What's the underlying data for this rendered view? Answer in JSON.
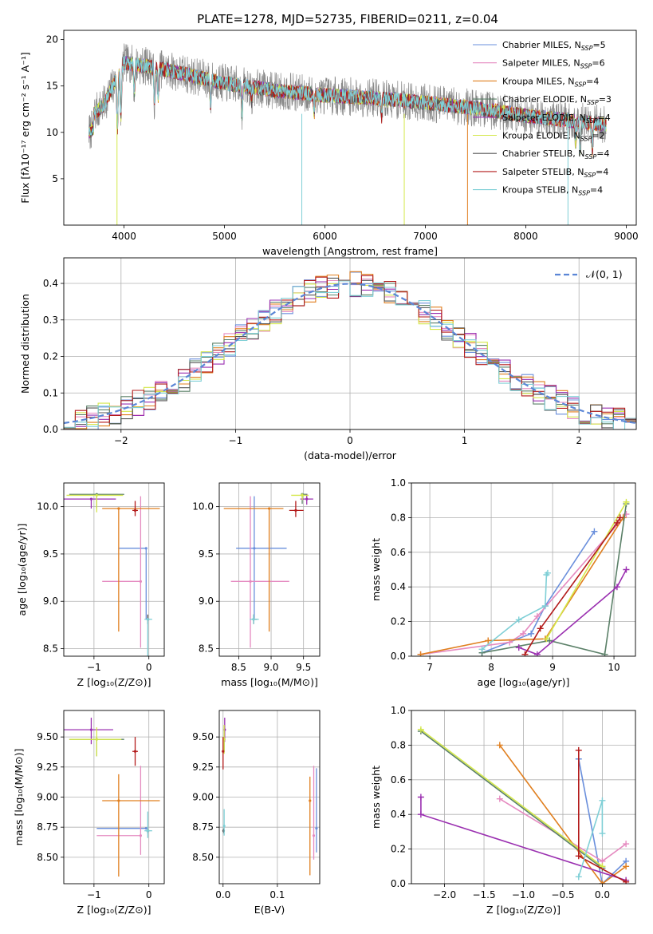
{
  "title": "PLATE=1278, MJD=52735, FIBERID=0211, z=0.04",
  "colors": {
    "Chabrier MILES": "#6a8fdc",
    "Salpeter MILES": "#e58ac0",
    "Kroupa MILES": "#e07f1f",
    "Chabrier ELODIE": "#5b8068",
    "Salpeter ELODIE": "#9a2fb0",
    "Kroupa ELODIE": "#d4e84a",
    "Chabrier STELIB": "#555555",
    "Salpeter STELIB": "#b31b1b",
    "Kroupa STELIB": "#7fcfd6",
    "data": "#888888",
    "normal": "#5b86d6"
  },
  "chart_data": [
    {
      "id": "spectrum",
      "type": "line",
      "title": "PLATE=1278, MJD=52735, FIBERID=0211, z=0.04",
      "xlabel": "wavelength [Angstrom, rest frame]",
      "ylabel": "Flux [fλ10⁻¹⁷ erg cm⁻² s⁻¹ A⁻¹]",
      "xlim": [
        3400,
        9100
      ],
      "ylim": [
        0,
        21
      ],
      "xticks": [
        4000,
        5000,
        6000,
        7000,
        8000,
        9000
      ],
      "yticks": [
        5,
        10,
        15,
        20
      ],
      "continuum": {
        "x": [
          3650,
          3800,
          4000,
          4300,
          4600,
          5000,
          5500,
          6000,
          6500,
          7000,
          7500,
          8000,
          8500,
          8800
        ],
        "y": [
          11.5,
          13.0,
          17.5,
          17.0,
          16.3,
          15.3,
          14.5,
          14.0,
          13.7,
          13.2,
          12.6,
          11.8,
          11.2,
          10.8
        ]
      },
      "legend": [
        {
          "name": "Chabrier MILES",
          "label": "Chabrier MILES, N",
          "sub": "SSP",
          "n": "=5"
        },
        {
          "name": "Salpeter MILES",
          "label": "Salpeter MILES, N",
          "sub": "SSP",
          "n": "=6"
        },
        {
          "name": "Kroupa MILES",
          "label": "Kroupa MILES, N",
          "sub": "SSP",
          "n": "=4"
        },
        {
          "name": "Chabrier ELODIE",
          "label": "Chabrier ELODIE, N",
          "sub": "SSP",
          "n": "=3"
        },
        {
          "name": "Salpeter ELODIE",
          "label": "Salpeter ELODIE, N",
          "sub": "SSP",
          "n": "=4"
        },
        {
          "name": "Kroupa ELODIE",
          "label": "Kroupa ELODIE, N",
          "sub": "SSP",
          "n": "=2"
        },
        {
          "name": "Chabrier STELIB",
          "label": "Chabrier STELIB, N",
          "sub": "SSP",
          "n": "=4"
        },
        {
          "name": "Salpeter STELIB",
          "label": "Salpeter STELIB, N",
          "sub": "SSP",
          "n": "=4"
        },
        {
          "name": "Kroupa STELIB",
          "label": "Kroupa STELIB, N",
          "sub": "SSP",
          "n": "=4"
        }
      ]
    },
    {
      "id": "residuals",
      "type": "line",
      "xlabel": "(data-model)/error",
      "ylabel": "Normed distribution",
      "xlim": [
        -2.5,
        2.5
      ],
      "ylim": [
        0,
        0.47
      ],
      "xticks": [
        -2,
        -1,
        0,
        1,
        2
      ],
      "yticks": [
        0.0,
        0.1,
        0.2,
        0.3,
        0.4
      ],
      "yticklabels": [
        "0.0",
        "0.1",
        "0.2",
        "0.3",
        "0.4"
      ],
      "bin_width": 0.1,
      "legend": "𝒩(0, 1)",
      "grid": true
    },
    {
      "id": "age-vs-Z",
      "type": "scatter",
      "xlabel": "Z [log₁₀(Z/Z⊙)]",
      "ylabel": "age  [log₁₀(age/yr)]",
      "xlim": [
        -1.55,
        0.28
      ],
      "ylim": [
        8.42,
        10.25
      ],
      "xticks": [
        -1,
        0
      ],
      "yticks": [
        8.5,
        9.0,
        9.5,
        10.0
      ],
      "yticklabels": [
        "8.5",
        "9.0",
        "9.5",
        "10.0"
      ],
      "points": [
        {
          "name": "Chabrier MILES",
          "x": -0.05,
          "xerr": [
            0.5,
            0.0
          ],
          "y": 9.56,
          "yerr": [
            0.75,
            0.0
          ]
        },
        {
          "name": "Salpeter MILES",
          "x": -0.15,
          "xerr": [
            0.7,
            0.0
          ],
          "y": 9.21,
          "yerr": [
            0.7,
            0.9
          ]
        },
        {
          "name": "Kroupa MILES",
          "x": -0.55,
          "xerr": [
            0.3,
            0.75
          ],
          "y": 9.98,
          "yerr": [
            1.3,
            0.0
          ]
        },
        {
          "name": "Chabrier ELODIE",
          "x": -0.95,
          "xerr": [
            0.5,
            0.5
          ],
          "y": 10.13,
          "yerr": [
            0.15,
            0.0
          ]
        },
        {
          "name": "Salpeter ELODIE",
          "x": -1.05,
          "xerr": [
            0.5,
            0.45
          ],
          "y": 10.08,
          "yerr": [
            0.1,
            0.0
          ]
        },
        {
          "name": "Kroupa ELODIE",
          "x": -0.95,
          "xerr": [
            0.55,
            0.48
          ],
          "y": 10.12,
          "yerr": [
            0.18,
            0.0
          ]
        },
        {
          "name": "Chabrier STELIB",
          "x": -0.02,
          "xerr": [
            0.03,
            0.03
          ],
          "y": 8.81,
          "yerr": [
            0.05,
            0.05
          ]
        },
        {
          "name": "Salpeter STELIB",
          "x": -0.25,
          "xerr": [
            0.05,
            0.05
          ],
          "y": 9.96,
          "yerr": [
            0.06,
            0.1
          ]
        },
        {
          "name": "Kroupa STELIB",
          "x": -0.02,
          "xerr": [
            0.06,
            0.08
          ],
          "y": 8.81,
          "yerr": [
            1.0,
            0.0
          ]
        }
      ]
    },
    {
      "id": "age-vs-mass",
      "type": "scatter",
      "xlabel": "mass [log₁₀(M/M⊙)]",
      "xlim": [
        8.2,
        9.75
      ],
      "ylim": [
        8.42,
        10.25
      ],
      "xticks": [
        8.5,
        9.0,
        9.5
      ],
      "xticklabels": [
        "8.5",
        "9.0",
        "9.5"
      ],
      "yticks": [
        8.5,
        9.0,
        9.5,
        10.0
      ],
      "yticklabels": [
        "8.5",
        "9.0",
        "9.5",
        "10.0"
      ],
      "points": [
        {
          "name": "Chabrier MILES",
          "x": 8.74,
          "xerr": [
            0.28,
            0.5
          ],
          "y": 9.56,
          "yerr": [
            0.75,
            0.55
          ]
        },
        {
          "name": "Salpeter MILES",
          "x": 8.68,
          "xerr": [
            0.3,
            0.6
          ],
          "y": 9.21,
          "yerr": [
            0.7,
            0.9
          ]
        },
        {
          "name": "Kroupa MILES",
          "x": 8.97,
          "xerr": [
            0.7,
            0.22
          ],
          "y": 9.98,
          "yerr": [
            1.3,
            0.0
          ]
        },
        {
          "name": "Chabrier ELODIE",
          "x": 9.48,
          "xerr": [
            0.02,
            0.08
          ],
          "y": 10.13,
          "yerr": [
            0.1,
            0.0
          ]
        },
        {
          "name": "Salpeter ELODIE",
          "x": 9.55,
          "xerr": [
            0.1,
            0.1
          ],
          "y": 10.08,
          "yerr": [
            0.06,
            0.05
          ]
        },
        {
          "name": "Kroupa ELODIE",
          "x": 9.48,
          "xerr": [
            0.17,
            0.1
          ],
          "y": 10.12,
          "yerr": [
            0.05,
            0.02
          ]
        },
        {
          "name": "Chabrier STELIB",
          "x": 8.73,
          "xerr": [
            0.02,
            0.05
          ],
          "y": 8.81,
          "yerr": [
            0.05,
            0.05
          ]
        },
        {
          "name": "Salpeter STELIB",
          "x": 9.38,
          "xerr": [
            0.1,
            0.12
          ],
          "y": 9.96,
          "yerr": [
            0.07,
            0.1
          ]
        },
        {
          "name": "Kroupa STELIB",
          "x": 8.73,
          "xerr": [
            0.06,
            0.08
          ],
          "y": 8.81,
          "yerr": [
            0.05,
            0.05
          ]
        }
      ]
    },
    {
      "id": "mass-weight-vs-age",
      "type": "line",
      "xlabel": "age  [log₁₀(age/yr)]",
      "ylabel": "mass weight",
      "xlim": [
        6.7,
        10.35
      ],
      "ylim": [
        0,
        1.0
      ],
      "xticks": [
        7,
        8,
        9,
        10
      ],
      "yticks": [
        0.0,
        0.2,
        0.4,
        0.6,
        0.8,
        1.0
      ],
      "yticklabels": [
        "0.0",
        "0.2",
        "0.4",
        "0.6",
        "0.8",
        "1.0"
      ],
      "series": [
        {
          "name": "Chabrier MILES",
          "x": [
            7.85,
            8.65,
            8.88,
            9.68
          ],
          "y": [
            0.02,
            0.13,
            0.29,
            0.72
          ]
        },
        {
          "name": "Salpeter MILES",
          "x": [
            6.85,
            8.3,
            8.52,
            8.75,
            10.2
          ],
          "y": [
            0.01,
            0.08,
            0.13,
            0.23,
            0.82
          ]
        },
        {
          "name": "Kroupa MILES",
          "x": [
            6.85,
            7.95,
            8.88,
            10.15
          ],
          "y": [
            0.01,
            0.09,
            0.1,
            0.8
          ]
        },
        {
          "name": "Chabrier ELODIE",
          "x": [
            7.85,
            8.95,
            9.85,
            10.2
          ],
          "y": [
            0.02,
            0.09,
            0.01,
            0.88
          ]
        },
        {
          "name": "Salpeter ELODIE",
          "x": [
            8.45,
            8.75,
            10.05,
            10.2
          ],
          "y": [
            0.05,
            0.01,
            0.4,
            0.5
          ]
        },
        {
          "name": "Kroupa ELODIE",
          "x": [
            8.9,
            10.2
          ],
          "y": [
            0.1,
            0.89
          ]
        },
        {
          "name": "Salpeter STELIB",
          "x": [
            8.55,
            8.8,
            10.05,
            10.1
          ],
          "y": [
            0.01,
            0.16,
            0.77,
            0.8
          ]
        },
        {
          "name": "Kroupa STELIB",
          "x": [
            7.85,
            8.45,
            8.88,
            8.9,
            8.92
          ],
          "y": [
            0.04,
            0.21,
            0.29,
            0.47,
            0.48
          ]
        }
      ]
    },
    {
      "id": "mass-vs-Z",
      "type": "scatter",
      "xlabel": "Z [log₁₀(Z/Z⊙)]",
      "ylabel": "mass [log₁₀(M/M⊙)]",
      "xlim": [
        -1.55,
        0.28
      ],
      "ylim": [
        8.28,
        9.72
      ],
      "xticks": [
        -1,
        0
      ],
      "yticks": [
        8.5,
        8.75,
        9.0,
        9.25,
        9.5
      ],
      "yticklabels": [
        "8.50",
        "8.75",
        "9.00",
        "9.25",
        "9.50"
      ],
      "points": [
        {
          "name": "Chabrier MILES",
          "x": -0.05,
          "xerr": [
            0.9,
            0.0
          ],
          "y": 8.74,
          "yerr": [
            0.0,
            0.0
          ]
        },
        {
          "name": "Salpeter MILES",
          "x": -0.15,
          "xerr": [
            0.8,
            0.0
          ],
          "y": 8.68,
          "yerr": [
            0.16,
            0.58
          ]
        },
        {
          "name": "Kroupa MILES",
          "x": -0.55,
          "xerr": [
            0.3,
            0.75
          ],
          "y": 8.97,
          "yerr": [
            0.63,
            0.22
          ]
        },
        {
          "name": "Chabrier ELODIE",
          "x": -0.95,
          "xerr": [
            0.5,
            0.5
          ],
          "y": 9.48,
          "yerr": [
            0.14,
            0.02
          ]
        },
        {
          "name": "Salpeter ELODIE",
          "x": -1.05,
          "xerr": [
            0.5,
            0.4
          ],
          "y": 9.56,
          "yerr": [
            0.12,
            0.1
          ]
        },
        {
          "name": "Kroupa ELODIE",
          "x": -0.95,
          "xerr": [
            0.5,
            0.45
          ],
          "y": 9.48,
          "yerr": [
            0.14,
            0.1
          ]
        },
        {
          "name": "Chabrier STELIB",
          "x": -0.02,
          "xerr": [
            0.03,
            0.03
          ],
          "y": 8.72,
          "yerr": [
            0.02,
            0.02
          ]
        },
        {
          "name": "Salpeter STELIB",
          "x": -0.25,
          "xerr": [
            0.05,
            0.05
          ],
          "y": 9.38,
          "yerr": [
            0.12,
            0.12
          ]
        },
        {
          "name": "Kroupa STELIB",
          "x": -0.02,
          "xerr": [
            0.06,
            0.08
          ],
          "y": 8.72,
          "yerr": [
            0.06,
            0.16
          ]
        }
      ]
    },
    {
      "id": "mass-vs-EBV",
      "type": "scatter",
      "xlabel": "E(B-V)",
      "xlim": [
        -0.007,
        0.178
      ],
      "ylim": [
        8.28,
        9.72
      ],
      "xticks": [
        0.0,
        0.1
      ],
      "xticklabels": [
        "0.0",
        "0.1"
      ],
      "yticks": [
        8.5,
        8.75,
        9.0,
        9.25,
        9.5
      ],
      "yticklabels": [
        "8.50",
        "8.75",
        "9.00",
        "9.25",
        "9.50"
      ],
      "points": [
        {
          "name": "Chabrier MILES",
          "x": 0.172,
          "xerr": [
            0,
            0
          ],
          "y": 8.74,
          "yerr": [
            0.2,
            0.5
          ]
        },
        {
          "name": "Salpeter MILES",
          "x": 0.167,
          "xerr": [
            0,
            0
          ],
          "y": 8.68,
          "yerr": [
            0.2,
            0.58
          ]
        },
        {
          "name": "Kroupa MILES",
          "x": 0.16,
          "xerr": [
            0,
            0
          ],
          "y": 8.97,
          "yerr": [
            0.62,
            0.2
          ]
        },
        {
          "name": "Chabrier ELODIE",
          "x": 0.002,
          "xerr": [
            0,
            0
          ],
          "y": 9.48,
          "yerr": [
            0.1,
            0.1
          ]
        },
        {
          "name": "Salpeter ELODIE",
          "x": 0.003,
          "xerr": [
            0,
            0
          ],
          "y": 9.56,
          "yerr": [
            0.1,
            0.1
          ]
        },
        {
          "name": "Kroupa ELODIE",
          "x": 0.002,
          "xerr": [
            0,
            0
          ],
          "y": 9.48,
          "yerr": [
            0.12,
            0.12
          ]
        },
        {
          "name": "Chabrier STELIB",
          "x": 0.001,
          "xerr": [
            0,
            0
          ],
          "y": 8.72,
          "yerr": [
            0.02,
            0.02
          ]
        },
        {
          "name": "Salpeter STELIB",
          "x": 0.0,
          "xerr": [
            0,
            0
          ],
          "y": 9.38,
          "yerr": [
            0.15,
            0.12
          ]
        },
        {
          "name": "Kroupa STELIB",
          "x": 0.002,
          "xerr": [
            0,
            0
          ],
          "y": 8.76,
          "yerr": [
            0.08,
            0.14
          ]
        }
      ]
    },
    {
      "id": "mass-weight-vs-Z",
      "type": "line",
      "xlabel": "Z [log₁₀(Z/Z⊙)]",
      "ylabel": "mass weight",
      "xlim": [
        -2.42,
        0.42
      ],
      "ylim": [
        0,
        1.0
      ],
      "xticks": [
        -2.0,
        -1.5,
        -1.0,
        -0.5,
        0.0
      ],
      "xticklabels": [
        "−2.0",
        "−1.5",
        "−1.0",
        "−0.5",
        "0.0"
      ],
      "yticks": [
        0.0,
        0.2,
        0.4,
        0.6,
        0.8,
        1.0
      ],
      "yticklabels": [
        "0.0",
        "0.2",
        "0.4",
        "0.6",
        "0.8",
        "1.0"
      ],
      "series": [
        {
          "name": "Chabrier MILES",
          "x": [
            -0.3,
            0.0,
            0.3
          ],
          "y": [
            0.72,
            0.0,
            0.13
          ]
        },
        {
          "name": "Salpeter MILES",
          "x": [
            -1.3,
            0.0,
            0.3
          ],
          "y": [
            0.49,
            0.13,
            0.23
          ]
        },
        {
          "name": "Kroupa MILES",
          "x": [
            -1.3,
            0.0,
            0.3
          ],
          "y": [
            0.8,
            0.0,
            0.1
          ]
        },
        {
          "name": "Chabrier ELODIE",
          "x": [
            -2.3,
            0.0
          ],
          "y": [
            0.88,
            0.09
          ]
        },
        {
          "name": "Salpeter ELODIE",
          "x": [
            -2.3,
            -2.3,
            0.3
          ],
          "y": [
            0.5,
            0.4,
            0.02
          ]
        },
        {
          "name": "Kroupa ELODIE",
          "x": [
            -2.3,
            0.0
          ],
          "y": [
            0.89,
            0.1
          ]
        },
        {
          "name": "Salpeter STELIB",
          "x": [
            -0.3,
            -0.3,
            0.3
          ],
          "y": [
            0.77,
            0.16,
            0.01
          ]
        },
        {
          "name": "Kroupa STELIB",
          "x": [
            -0.3,
            0.0,
            0.0
          ],
          "y": [
            0.04,
            0.48,
            0.29
          ]
        }
      ]
    }
  ]
}
